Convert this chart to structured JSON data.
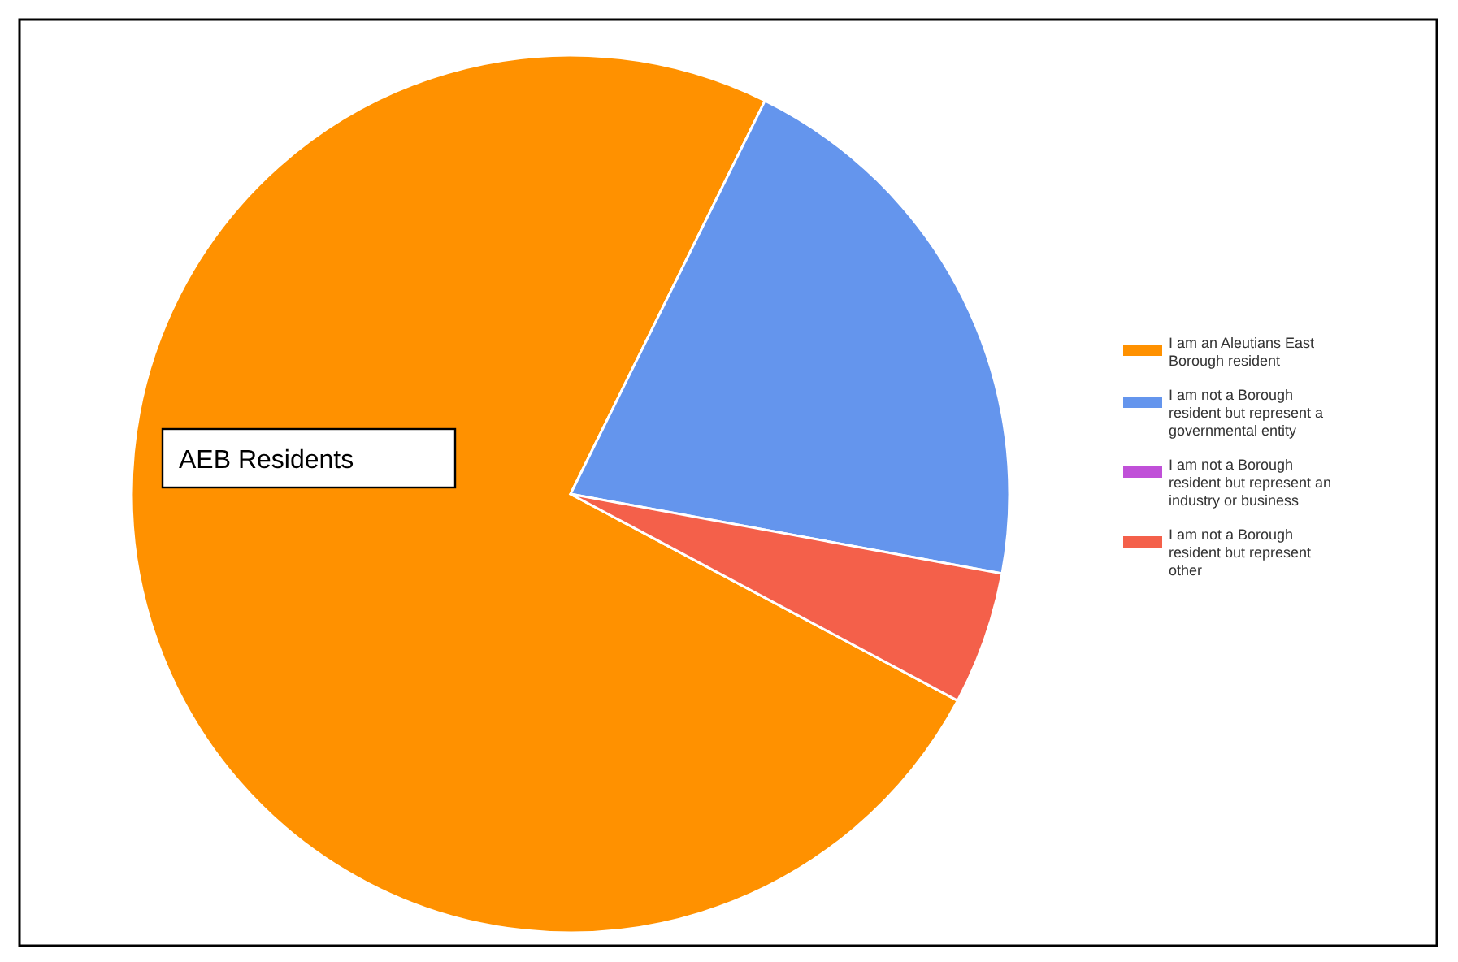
{
  "chart_data": {
    "type": "pie",
    "categories": [
      "I am an Aleutians East Borough resident",
      "I am not a Borough resident but represent a governmental entity",
      "I am not a Borough resident but represent an industry or business",
      "I am not a Borough resident but represent other"
    ],
    "values": [
      74.5,
      20.6,
      0,
      4.9
    ],
    "colors": [
      "#ff9100",
      "#6495ed",
      "#c050d8",
      "#f4604a"
    ],
    "legend": "right",
    "annotations": [
      "AEB Residents"
    ]
  }
}
